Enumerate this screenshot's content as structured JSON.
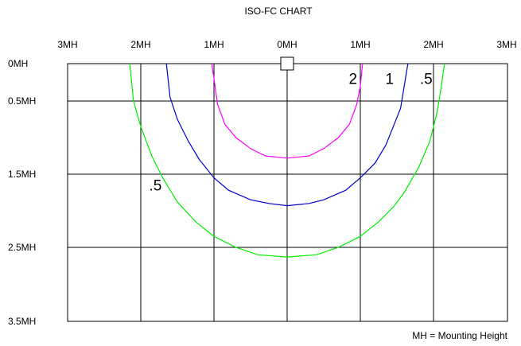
{
  "chart_data": {
    "type": "line",
    "title": "ISO-FC CHART",
    "note": "MH = Mounting Height",
    "x_ticks": [
      "3MH",
      "2MH",
      "1MH",
      "0MH",
      "1MH",
      "2MH",
      "3MH"
    ],
    "y_ticks": [
      "0MH",
      "0.5MH",
      "1.5MH",
      "2.5MH",
      "3.5MH"
    ],
    "grid": true,
    "marker": "luminaire-square-at-origin",
    "series": [
      {
        "label": "2",
        "color": "#ff00ff",
        "points": [
          [
            -1.03,
            0
          ],
          [
            -1.0,
            0.2
          ],
          [
            -0.95,
            0.55
          ],
          [
            -0.85,
            0.82
          ],
          [
            -0.7,
            1.0
          ],
          [
            -0.5,
            1.15
          ],
          [
            -0.3,
            1.25
          ],
          [
            0.0,
            1.28
          ],
          [
            0.3,
            1.25
          ],
          [
            0.5,
            1.15
          ],
          [
            0.7,
            1.0
          ],
          [
            0.85,
            0.82
          ],
          [
            0.95,
            0.55
          ],
          [
            1.0,
            0.3
          ],
          [
            1.03,
            0
          ]
        ]
      },
      {
        "label": "1",
        "color": "#0000cc",
        "points": [
          [
            -1.65,
            0
          ],
          [
            -1.6,
            0.45
          ],
          [
            -1.5,
            0.75
          ],
          [
            -1.35,
            1.05
          ],
          [
            -1.2,
            1.3
          ],
          [
            -1.0,
            1.55
          ],
          [
            -0.8,
            1.72
          ],
          [
            -0.5,
            1.85
          ],
          [
            -0.25,
            1.9
          ],
          [
            0.0,
            1.93
          ],
          [
            0.3,
            1.9
          ],
          [
            0.5,
            1.85
          ],
          [
            0.8,
            1.72
          ],
          [
            1.0,
            1.55
          ],
          [
            1.2,
            1.35
          ],
          [
            1.35,
            1.1
          ],
          [
            1.45,
            0.85
          ],
          [
            1.55,
            0.6
          ],
          [
            1.6,
            0.3
          ],
          [
            1.65,
            0
          ]
        ]
      },
      {
        "label": ".5",
        "color": "#00ee00",
        "points": [
          [
            -2.15,
            0
          ],
          [
            -2.1,
            0.5
          ],
          [
            -2.0,
            0.85
          ],
          [
            -1.85,
            1.25
          ],
          [
            -1.7,
            1.55
          ],
          [
            -1.5,
            1.88
          ],
          [
            -1.25,
            2.15
          ],
          [
            -1.0,
            2.35
          ],
          [
            -0.7,
            2.5
          ],
          [
            -0.4,
            2.6
          ],
          [
            0.0,
            2.63
          ],
          [
            0.4,
            2.6
          ],
          [
            0.7,
            2.5
          ],
          [
            1.0,
            2.35
          ],
          [
            1.25,
            2.15
          ],
          [
            1.45,
            1.95
          ],
          [
            1.6,
            1.75
          ],
          [
            1.8,
            1.4
          ],
          [
            1.95,
            1.05
          ],
          [
            2.05,
            0.65
          ],
          [
            2.1,
            0.35
          ],
          [
            2.15,
            0
          ]
        ]
      }
    ],
    "curve_labels": [
      {
        "text": "2",
        "x": 0.9,
        "y": 0.1,
        "color": "#000000"
      },
      {
        "text": "1",
        "x": 1.4,
        "y": 0.1,
        "color": "#000000"
      },
      {
        "text": ".5",
        "x": 1.9,
        "y": 0.1,
        "color": "#000000"
      },
      {
        "text": ".5",
        "x": -1.8,
        "y": 1.55,
        "color": "#000000"
      }
    ]
  }
}
